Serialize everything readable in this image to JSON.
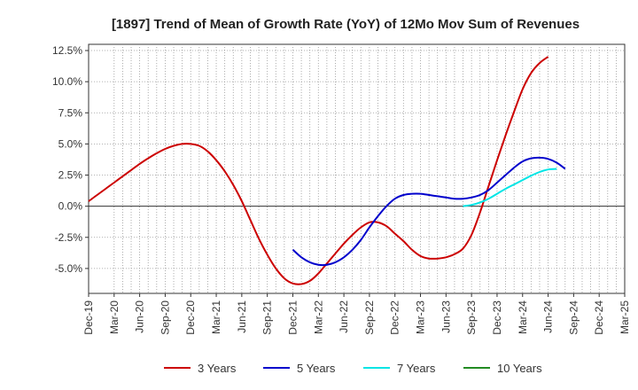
{
  "chart_data": {
    "type": "line",
    "title": "[1897]  Trend of Mean of Growth Rate (YoY) of 12Mo Mov Sum of Revenues",
    "xlabel": "",
    "ylabel": "",
    "ylim": [
      -7.0,
      13.0
    ],
    "yticks": [
      "12.5%",
      "10.0%",
      "7.5%",
      "5.0%",
      "2.5%",
      "0.0%",
      "-2.5%",
      "-5.0%"
    ],
    "ytick_values": [
      12.5,
      10.0,
      7.5,
      5.0,
      2.5,
      0.0,
      -2.5,
      -5.0
    ],
    "xticks": [
      "Dec-19",
      "Mar-20",
      "Jun-20",
      "Sep-20",
      "Dec-20",
      "Mar-21",
      "Jun-21",
      "Sep-21",
      "Dec-21",
      "Mar-22",
      "Jun-22",
      "Sep-22",
      "Dec-22",
      "Mar-23",
      "Jun-23",
      "Sep-23",
      "Dec-23",
      "Mar-24",
      "Jun-24",
      "Sep-24",
      "Dec-24",
      "Mar-25"
    ],
    "grid": true,
    "legend_position": "bottom",
    "series": [
      {
        "name": "3 Years",
        "color": "#cc0000",
        "start_index": 0,
        "values": [
          0.4,
          0.9,
          1.4,
          1.9,
          2.4,
          2.9,
          3.4,
          3.85,
          4.25,
          4.6,
          4.85,
          5.0,
          5.0,
          4.85,
          4.4,
          3.7,
          2.8,
          1.7,
          0.4,
          -1.1,
          -2.6,
          -3.9,
          -5.0,
          -5.8,
          -6.2,
          -6.25,
          -6.0,
          -5.4,
          -4.6,
          -3.8,
          -3.0,
          -2.3,
          -1.7,
          -1.3,
          -1.3,
          -1.6,
          -2.2,
          -2.8,
          -3.5,
          -4.0,
          -4.2,
          -4.2,
          -4.1,
          -3.85,
          -3.4,
          -2.3,
          -0.5,
          1.6,
          3.7,
          5.7,
          7.6,
          9.4,
          10.7,
          11.5,
          12.0
        ]
      },
      {
        "name": "5 Years",
        "color": "#0000cc",
        "start_index": 24,
        "values": [
          -3.5,
          -4.1,
          -4.5,
          -4.7,
          -4.7,
          -4.5,
          -4.1,
          -3.5,
          -2.7,
          -1.7,
          -0.8,
          0.0,
          0.6,
          0.9,
          1.0,
          1.0,
          0.9,
          0.8,
          0.7,
          0.6,
          0.6,
          0.7,
          0.9,
          1.3,
          1.9,
          2.5,
          3.1,
          3.6,
          3.85,
          3.9,
          3.8,
          3.5,
          3.0
        ]
      },
      {
        "name": "7 Years",
        "color": "#00e5e5",
        "start_index": 44,
        "values": [
          0.0,
          0.1,
          0.3,
          0.6,
          1.0,
          1.4,
          1.75,
          2.1,
          2.45,
          2.75,
          2.95,
          3.0
        ]
      },
      {
        "name": "10 Years",
        "color": "#228b22",
        "start_index": 0,
        "values": []
      }
    ]
  }
}
